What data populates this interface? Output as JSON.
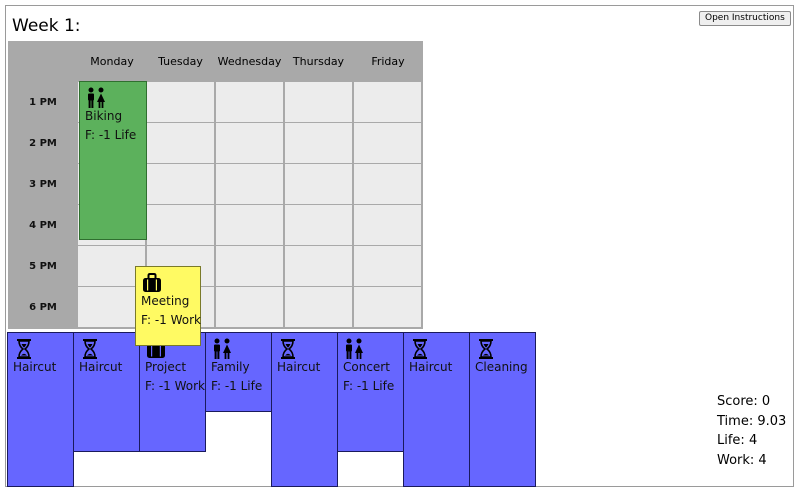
{
  "week_title": "Week 1:",
  "instructions_button": "Open Instructions",
  "days": [
    "Monday",
    "Tuesday",
    "Wednesday",
    "Thursday",
    "Friday"
  ],
  "times": [
    "1 PM",
    "2 PM",
    "3 PM",
    "4 PM",
    "5 PM",
    "6 PM"
  ],
  "placed": {
    "name": "Biking",
    "effect": "F: -1 Life",
    "icon": "people-icon",
    "color": "#5cb15c"
  },
  "dragging": {
    "name": "Meeting",
    "effect": "F: -1 Work",
    "icon": "briefcase-icon",
    "color": "#fffa63"
  },
  "queue": [
    {
      "name": "Haircut",
      "effect": "",
      "icon": "hourglass-icon"
    },
    {
      "name": "Haircut",
      "effect": "",
      "icon": "hourglass-icon"
    },
    {
      "name": "Project",
      "effect": "F: -1 Work",
      "icon": "briefcase-icon"
    },
    {
      "name": "Family",
      "effect": "F: -1 Life",
      "icon": "people-icon"
    },
    {
      "name": "Haircut",
      "effect": "",
      "icon": "hourglass-icon"
    },
    {
      "name": "Concert",
      "effect": "F: -1 Life",
      "icon": "people-icon"
    },
    {
      "name": "Haircut",
      "effect": "",
      "icon": "hourglass-icon"
    },
    {
      "name": "Cleaning",
      "effect": "",
      "icon": "hourglass-icon"
    }
  ],
  "queue_color": "#6666ff",
  "stats": {
    "score": "Score: 0",
    "time": "Time: 9.03",
    "life": "Life: 4",
    "work": "Work: 4"
  }
}
